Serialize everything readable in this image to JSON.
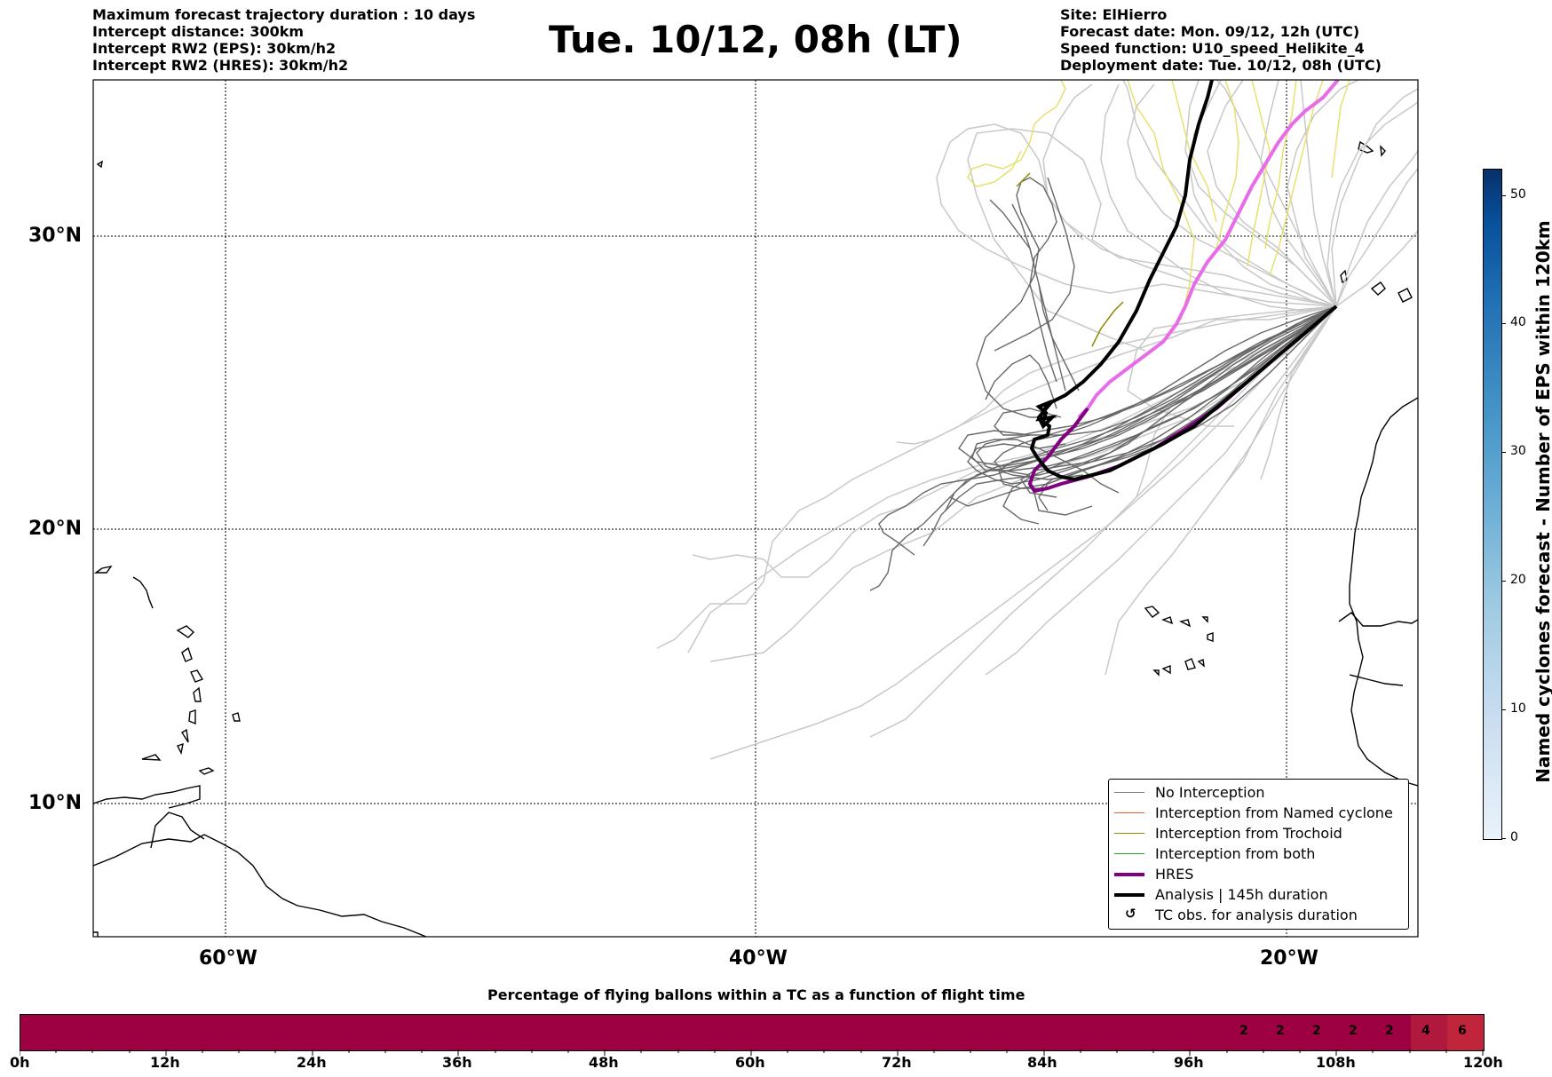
{
  "header": {
    "left": [
      "Maximum forecast trajectory duration : 10 days",
      "Intercept distance: 300km",
      "Intercept RW2 (EPS):  30km/h2",
      "Intercept RW2 (HRES): 30km/h2"
    ],
    "title": "Tue. 10/12, 08h (LT)",
    "right": [
      "Site: ElHierro",
      "Forecast date: Mon. 09/12, 12h (UTC)",
      "Speed function: U10_speed_Helikite_4",
      "Deployment date: Tue. 10/12, 08h (UTC)"
    ]
  },
  "map": {
    "lat_labels": [
      "30°N",
      "20°N",
      "10°N"
    ],
    "lon_labels": [
      "60°W",
      "40°W",
      "20°W"
    ]
  },
  "legend": {
    "items": [
      {
        "label": "No Interception",
        "color": "#808080"
      },
      {
        "label": "Interception from Named cyclone",
        "color": "#e8602c"
      },
      {
        "label": "Interception from Trochoid",
        "color": "#8b8b00"
      },
      {
        "label": "Interception from both",
        "color": "#2ca02c"
      },
      {
        "label": "HRES",
        "color": "#800080"
      },
      {
        "label": "Analysis | 145h duration",
        "color": "#000000"
      },
      {
        "label": "TC obs. for analysis duration",
        "icon": "cyclone-icon"
      }
    ]
  },
  "colorbar": {
    "label": "Named cyclones forecast - Number of EPS within 120km",
    "ticks": [
      "0",
      "10",
      "20",
      "30",
      "40",
      "50"
    ]
  },
  "timebar": {
    "title": "Percentage of flying ballons within a TC as a function of flight time",
    "ticks": [
      "0h",
      "12h",
      "24h",
      "36h",
      "48h",
      "60h",
      "72h",
      "84h",
      "96h",
      "108h",
      "120h"
    ],
    "cells": [
      "2",
      "2",
      "2",
      "2",
      "2",
      "4",
      "6"
    ],
    "colors": {
      "base": "#9e0142",
      "light": "#b1183e",
      "lighter": "#c0253c"
    }
  }
}
